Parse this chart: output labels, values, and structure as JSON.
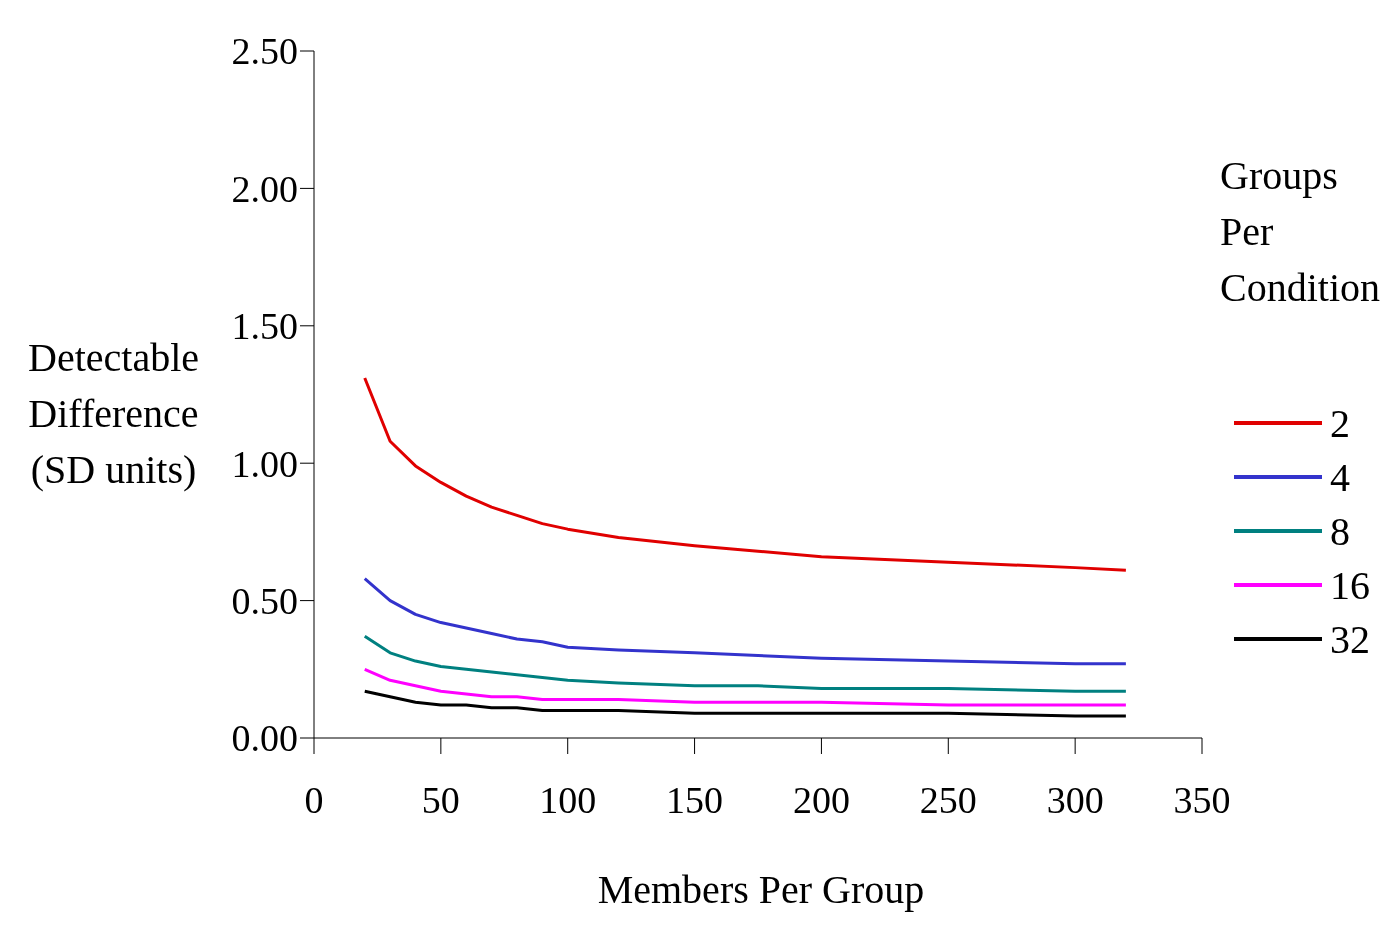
{
  "chart_data": {
    "type": "line",
    "xlabel": "Members Per Group",
    "ylabel": "Detectable Difference (SD units)",
    "legend_title": "Groups Per Condition",
    "legend": "right",
    "grid": false,
    "marker": "none",
    "line_style": "solid",
    "x": [
      20,
      30,
      40,
      50,
      60,
      70,
      80,
      90,
      100,
      120,
      150,
      175,
      200,
      250,
      300,
      320
    ],
    "xlim": [
      0,
      350
    ],
    "xticks": [
      0,
      50,
      100,
      150,
      200,
      250,
      300,
      350
    ],
    "ylim": [
      0,
      2.5
    ],
    "yticks": [
      {
        "value": 0,
        "label": "0.00"
      },
      {
        "value": 0.5,
        "label": "0.50"
      },
      {
        "value": 1,
        "label": "1.00"
      },
      {
        "value": 1.5,
        "label": "1.50"
      },
      {
        "value": 2,
        "label": "2.00"
      },
      {
        "value": 2.5,
        "label": "2.50"
      }
    ],
    "series": [
      {
        "name": "2",
        "color": "#e00000",
        "values": [
          1.31,
          1.08,
          0.99,
          0.93,
          0.88,
          0.84,
          0.81,
          0.78,
          0.76,
          0.73,
          0.7,
          0.68,
          0.66,
          0.64,
          0.62,
          0.61
        ]
      },
      {
        "name": "4",
        "color": "#3333cc",
        "values": [
          0.58,
          0.5,
          0.45,
          0.42,
          0.4,
          0.38,
          0.36,
          0.35,
          0.33,
          0.32,
          0.31,
          0.3,
          0.29,
          0.28,
          0.27,
          0.27
        ]
      },
      {
        "name": "8",
        "color": "#008080",
        "values": [
          0.37,
          0.31,
          0.28,
          0.26,
          0.25,
          0.24,
          0.23,
          0.22,
          0.21,
          0.2,
          0.19,
          0.19,
          0.18,
          0.18,
          0.17,
          0.17
        ]
      },
      {
        "name": "16",
        "color": "#ff00ff",
        "values": [
          0.25,
          0.21,
          0.19,
          0.17,
          0.16,
          0.15,
          0.15,
          0.14,
          0.14,
          0.14,
          0.13,
          0.13,
          0.13,
          0.12,
          0.12,
          0.12
        ]
      },
      {
        "name": "32",
        "color": "#000000",
        "values": [
          0.17,
          0.15,
          0.13,
          0.12,
          0.12,
          0.11,
          0.11,
          0.1,
          0.1,
          0.1,
          0.09,
          0.09,
          0.09,
          0.09,
          0.08,
          0.08
        ]
      }
    ]
  }
}
